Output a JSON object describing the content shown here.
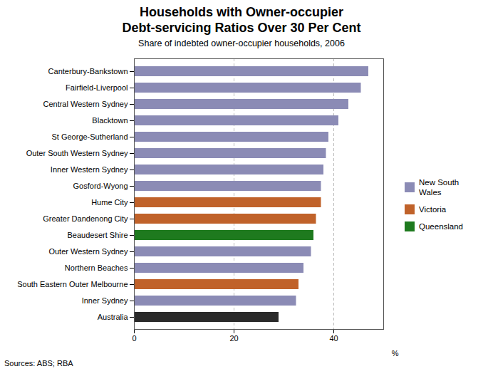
{
  "chart_data": {
    "type": "bar",
    "orientation": "horizontal",
    "title": "Households with Owner-occupier\nDebt-servicing Ratios Over 30 Per Cent",
    "subtitle": "Share of indebted owner-occupier households, 2006",
    "source": "Sources: ABS; RBA",
    "xlabel": "%",
    "categories": [
      "Canterbury-Bankstown",
      "Fairfield-Liverpool",
      "Central Western Sydney",
      "Blacktown",
      "St George-Sutherland",
      "Outer South Western Sydney",
      "Inner Western Sydney",
      "Gosford-Wyong",
      "Hume City",
      "Greater Dandenong City",
      "Beaudesert Shire",
      "Outer Western Sydney",
      "Northern Beaches",
      "South Eastern Outer Melbourne",
      "Inner Sydney",
      "Australia"
    ],
    "values": [
      47,
      45.5,
      43,
      41,
      39,
      38.5,
      38,
      37.5,
      37.5,
      36.5,
      36,
      35.5,
      34,
      33,
      32.5,
      29
    ],
    "colors": [
      "#8b8bb5",
      "#8b8bb5",
      "#8b8bb5",
      "#8b8bb5",
      "#8b8bb5",
      "#8b8bb5",
      "#8b8bb5",
      "#8b8bb5",
      "#c0622a",
      "#c0622a",
      "#1e7a1e",
      "#8b8bb5",
      "#8b8bb5",
      "#c0622a",
      "#8b8bb5",
      "#2a2a2a"
    ],
    "legend": "right",
    "legend_entries": [
      {
        "name": "New South\nWales",
        "color": "#8b8bb5"
      },
      {
        "name": "Victoria",
        "color": "#c0622a"
      },
      {
        "name": "Queensland",
        "color": "#1e7a1e"
      }
    ],
    "xlim": [
      0,
      50
    ],
    "xticks": [
      0,
      20,
      40
    ],
    "grid": true
  }
}
